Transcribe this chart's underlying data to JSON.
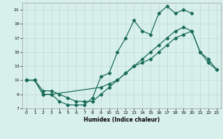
{
  "xlabel": "Humidex (Indice chaleur)",
  "bg_color": "#d8f0ec",
  "grid_color": "#c0d8d4",
  "line_color": "#1a6b5a",
  "xlim": [
    -0.5,
    23.5
  ],
  "ylim": [
    7,
    22
  ],
  "xticks": [
    0,
    1,
    2,
    3,
    4,
    5,
    6,
    7,
    8,
    9,
    10,
    11,
    12,
    13,
    14,
    15,
    16,
    17,
    18,
    19,
    20,
    21,
    22,
    23
  ],
  "yticks": [
    7,
    9,
    11,
    13,
    15,
    17,
    19,
    21
  ],
  "line1_x": [
    0,
    1,
    2,
    3,
    4,
    5,
    6,
    7,
    8,
    9,
    10,
    11,
    12,
    13,
    14,
    15,
    16,
    17,
    18,
    19,
    20
  ],
  "line1_y": [
    11,
    11,
    9,
    9,
    8,
    7.5,
    7.5,
    7.5,
    8.5,
    11.5,
    12,
    15,
    17,
    19.5,
    18,
    17.5,
    20.5,
    21.5,
    20.5,
    21,
    20.5
  ],
  "line2_x": [
    0,
    1,
    2,
    3,
    9,
    10,
    11,
    12,
    13,
    14,
    15,
    16,
    17,
    18,
    19,
    20,
    21,
    22,
    23
  ],
  "line2_y": [
    11,
    11,
    9,
    9,
    10,
    10.5,
    11,
    12,
    13,
    14,
    15,
    16,
    17,
    18,
    18.5,
    18,
    15,
    14,
    12.5
  ],
  "line3_x": [
    0,
    1,
    2,
    3,
    4,
    5,
    6,
    7,
    8,
    9,
    10,
    11,
    12,
    13,
    14,
    15,
    16,
    17,
    18,
    19,
    20,
    21,
    22,
    23
  ],
  "line3_y": [
    11,
    11,
    9.5,
    9.5,
    9,
    8.5,
    8,
    8,
    8,
    9,
    10,
    11,
    12,
    13,
    13.5,
    14,
    15,
    16,
    17,
    17.5,
    18,
    15,
    13.5,
    12.5
  ]
}
